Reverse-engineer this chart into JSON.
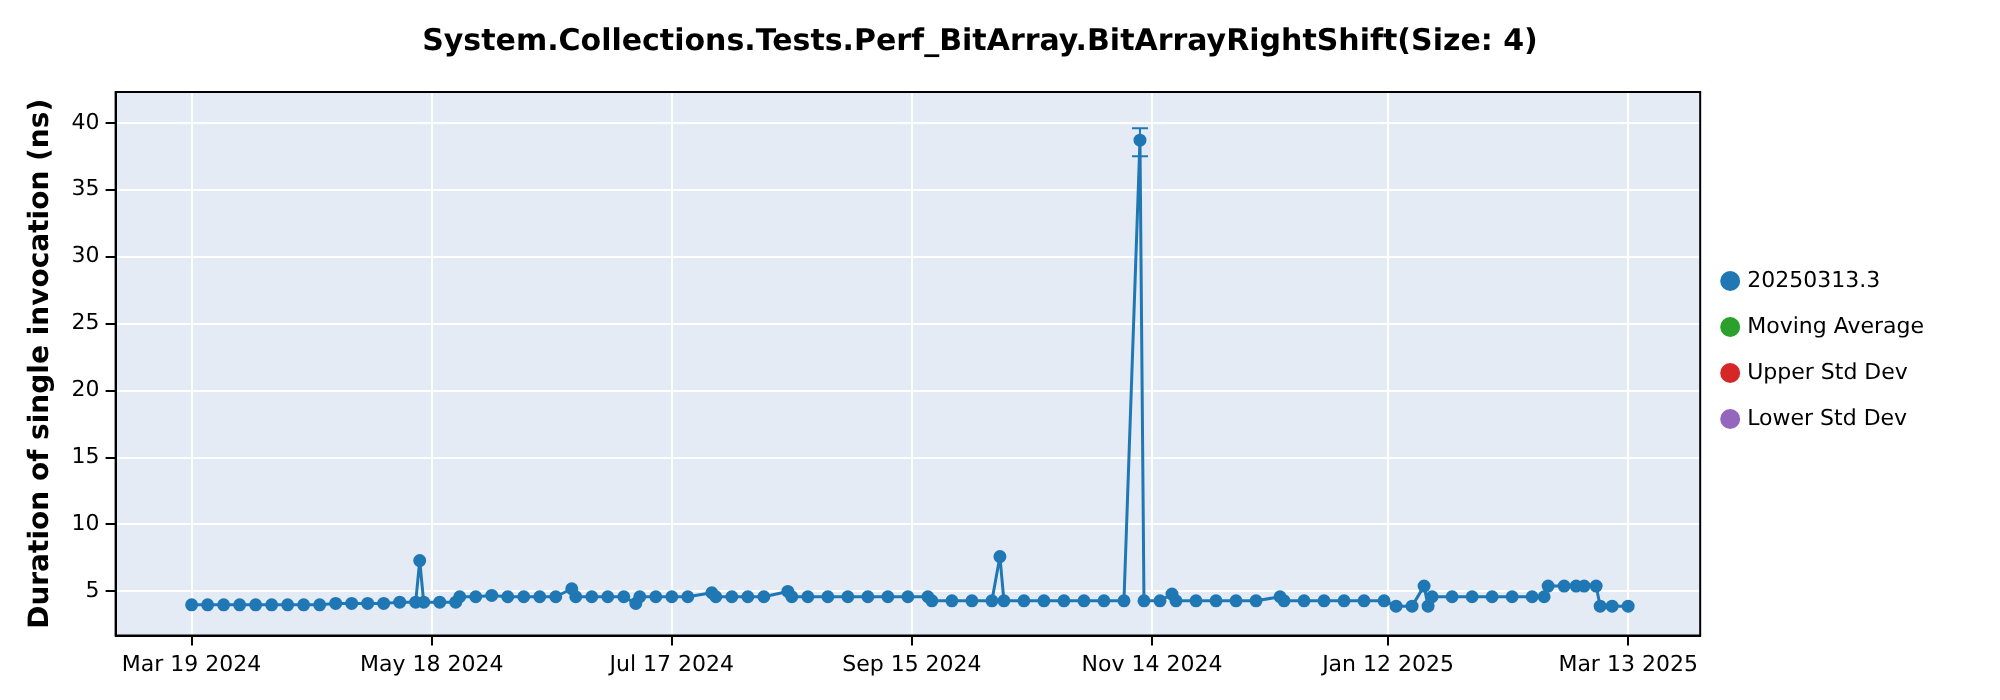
{
  "chart_data": {
    "type": "line",
    "title": "System.Collections.Tests.Perf_BitArray.BitArrayRightShift(Size: 4)",
    "ylabel": "Duration of single invocation (ns)",
    "x": [
      "2024-03-19",
      "2024-03-23",
      "2024-03-27",
      "2024-03-31",
      "2024-04-04",
      "2024-04-08",
      "2024-04-12",
      "2024-04-16",
      "2024-04-20",
      "2024-04-24",
      "2024-04-28",
      "2024-05-02",
      "2024-05-06",
      "2024-05-10",
      "2024-05-14",
      "2024-05-15",
      "2024-05-16",
      "2024-05-20",
      "2024-05-24",
      "2024-05-25",
      "2024-05-29",
      "2024-06-02",
      "2024-06-06",
      "2024-06-10",
      "2024-06-14",
      "2024-06-18",
      "2024-06-22",
      "2024-06-23",
      "2024-06-27",
      "2024-07-01",
      "2024-07-05",
      "2024-07-08",
      "2024-07-09",
      "2024-07-13",
      "2024-07-17",
      "2024-07-21",
      "2024-07-27",
      "2024-07-28",
      "2024-08-01",
      "2024-08-05",
      "2024-08-09",
      "2024-08-15",
      "2024-08-16",
      "2024-08-20",
      "2024-08-25",
      "2024-08-30",
      "2024-09-04",
      "2024-09-09",
      "2024-09-14",
      "2024-09-19",
      "2024-09-20",
      "2024-09-25",
      "2024-09-30",
      "2024-10-05",
      "2024-10-07",
      "2024-10-08",
      "2024-10-13",
      "2024-10-18",
      "2024-10-23",
      "2024-10-28",
      "2024-11-02",
      "2024-11-07",
      "2024-11-11",
      "2024-11-12",
      "2024-11-16",
      "2024-11-19",
      "2024-11-20",
      "2024-11-25",
      "2024-11-30",
      "2024-12-05",
      "2024-12-10",
      "2024-12-16",
      "2024-12-17",
      "2024-12-22",
      "2024-12-27",
      "2025-01-01",
      "2025-01-06",
      "2025-01-11",
      "2025-01-14",
      "2025-01-18",
      "2025-01-21",
      "2025-01-22",
      "2025-01-23",
      "2025-01-28",
      "2025-02-02",
      "2025-02-07",
      "2025-02-12",
      "2025-02-17",
      "2025-02-20",
      "2025-02-21",
      "2025-02-25",
      "2025-02-28",
      "2025-03-02",
      "2025-03-05",
      "2025-03-06",
      "2025-03-09",
      "2025-03-13"
    ],
    "series": [
      {
        "name": "20250313.3",
        "color": "#1f77b4",
        "values": [
          4.0,
          4.0,
          4.0,
          4.0,
          4.0,
          4.0,
          4.0,
          4.0,
          4.0,
          4.1,
          4.1,
          4.1,
          4.1,
          4.2,
          4.2,
          7.3,
          4.2,
          4.2,
          4.2,
          4.6,
          4.6,
          4.7,
          4.6,
          4.6,
          4.6,
          4.6,
          5.2,
          4.6,
          4.6,
          4.6,
          4.6,
          4.1,
          4.6,
          4.6,
          4.6,
          4.6,
          4.9,
          4.6,
          4.6,
          4.6,
          4.6,
          5.0,
          4.6,
          4.6,
          4.6,
          4.6,
          4.6,
          4.6,
          4.6,
          4.6,
          4.3,
          4.3,
          4.3,
          4.3,
          7.6,
          4.3,
          4.3,
          4.3,
          4.3,
          4.3,
          4.3,
          4.3,
          38.7,
          4.3,
          4.3,
          4.8,
          4.3,
          4.3,
          4.3,
          4.3,
          4.3,
          4.6,
          4.3,
          4.3,
          4.3,
          4.3,
          4.3,
          4.3,
          3.9,
          3.9,
          5.4,
          3.9,
          4.6,
          4.6,
          4.6,
          4.6,
          4.6,
          4.6,
          4.6,
          5.4,
          5.4,
          5.4,
          5.4,
          5.4,
          3.9,
          3.9,
          3.9
        ],
        "errors": [
          null,
          null,
          null,
          null,
          null,
          null,
          null,
          null,
          null,
          null,
          null,
          null,
          null,
          null,
          null,
          null,
          null,
          null,
          null,
          null,
          null,
          null,
          null,
          null,
          null,
          null,
          null,
          null,
          null,
          null,
          null,
          null,
          null,
          null,
          null,
          null,
          null,
          null,
          null,
          null,
          null,
          null,
          null,
          null,
          null,
          null,
          null,
          null,
          null,
          null,
          null,
          null,
          null,
          null,
          null,
          null,
          null,
          null,
          null,
          null,
          null,
          null,
          [
            37.5,
            39.6
          ],
          null,
          null,
          null,
          null,
          null,
          null,
          null,
          null,
          null,
          null,
          null,
          null,
          null,
          null,
          null,
          null,
          null,
          null,
          null,
          null,
          null,
          null,
          null,
          null,
          null,
          null,
          null,
          null,
          null,
          null,
          null,
          null,
          null,
          null
        ]
      },
      {
        "name": "Moving Average",
        "color": "#2ca02c",
        "values": [
          null,
          null,
          null,
          null,
          null,
          null,
          null,
          null,
          null,
          null,
          null,
          null,
          null,
          null,
          null,
          null,
          null,
          null,
          null,
          null,
          null,
          null,
          null,
          null,
          null,
          null,
          null,
          null,
          null,
          null,
          null,
          null,
          null,
          null,
          null,
          null,
          null,
          null,
          null,
          null,
          null,
          null,
          null,
          null,
          null,
          null,
          null,
          null,
          null,
          null,
          null,
          null,
          null,
          null,
          null,
          null,
          null,
          null,
          null,
          null,
          null,
          null,
          null,
          null,
          null,
          null,
          null,
          null,
          null,
          null,
          null,
          null,
          null,
          null,
          null,
          null,
          null,
          null,
          null,
          null,
          null,
          null,
          null,
          null,
          null,
          null,
          null,
          null,
          null,
          null,
          null,
          null,
          null,
          null,
          null,
          null,
          null
        ]
      },
      {
        "name": "Upper Std Dev",
        "color": "#d62728",
        "values": [
          null,
          null,
          null,
          null,
          null,
          null,
          null,
          null,
          null,
          null,
          null,
          null,
          null,
          null,
          null,
          null,
          null,
          null,
          null,
          null,
          null,
          null,
          null,
          null,
          null,
          null,
          null,
          null,
          null,
          null,
          null,
          null,
          null,
          null,
          null,
          null,
          null,
          null,
          null,
          null,
          null,
          null,
          null,
          null,
          null,
          null,
          null,
          null,
          null,
          null,
          null,
          null,
          null,
          null,
          null,
          null,
          null,
          null,
          null,
          null,
          null,
          null,
          null,
          null,
          null,
          null,
          null,
          null,
          null,
          null,
          null,
          null,
          null,
          null,
          null,
          null,
          null,
          null,
          null,
          null,
          null,
          null,
          null,
          null,
          null,
          null,
          null,
          null,
          null,
          null,
          null,
          null,
          null,
          null,
          null,
          null,
          null
        ]
      },
      {
        "name": "Lower Std Dev",
        "color": "#9467bd",
        "values": [
          null,
          null,
          null,
          null,
          null,
          null,
          null,
          null,
          null,
          null,
          null,
          null,
          null,
          null,
          null,
          null,
          null,
          null,
          null,
          null,
          null,
          null,
          null,
          null,
          null,
          null,
          null,
          null,
          null,
          null,
          null,
          null,
          null,
          null,
          null,
          null,
          null,
          null,
          null,
          null,
          null,
          null,
          null,
          null,
          null,
          null,
          null,
          null,
          null,
          null,
          null,
          null,
          null,
          null,
          null,
          null,
          null,
          null,
          null,
          null,
          null,
          null,
          null,
          null,
          null,
          null,
          null,
          null,
          null,
          null,
          null,
          null,
          null,
          null,
          null,
          null,
          null,
          null,
          null,
          null,
          null,
          null,
          null,
          null,
          null,
          null,
          null,
          null,
          null,
          null,
          null,
          null,
          null,
          null,
          null,
          null,
          null
        ]
      }
    ],
    "xlim": [
      "2024-02-29",
      "2025-03-31"
    ],
    "xticks": [
      {
        "value": "2024-03-19",
        "label": "Mar 19 2024"
      },
      {
        "value": "2024-05-18",
        "label": "May 18 2024"
      },
      {
        "value": "2024-07-17",
        "label": "Jul 17 2024"
      },
      {
        "value": "2024-09-15",
        "label": "Sep 15 2024"
      },
      {
        "value": "2024-11-14",
        "label": "Nov 14 2024"
      },
      {
        "value": "2025-01-12",
        "label": "Jan 12 2025"
      },
      {
        "value": "2025-03-13",
        "label": "Mar 13 2025"
      }
    ],
    "ylim": [
      1.7,
      42.3
    ],
    "yticks": [
      5,
      10,
      15,
      20,
      25,
      30,
      35,
      40
    ],
    "grid": true,
    "legend": "right",
    "marker": "circle",
    "line_style": "solid"
  }
}
